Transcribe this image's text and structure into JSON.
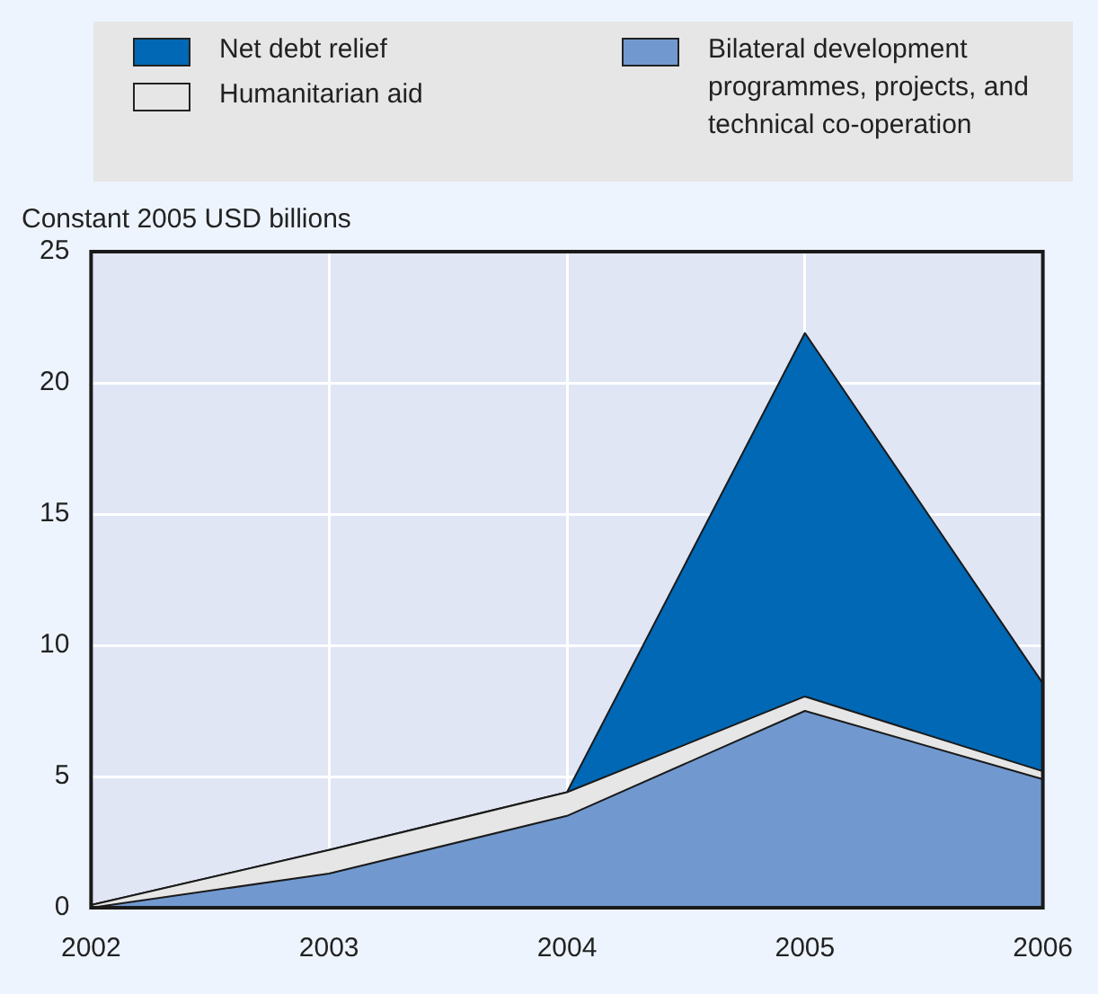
{
  "chart_data": {
    "type": "area",
    "stacked": true,
    "ylabel": "Constant 2005 USD billions",
    "categories": [
      "2002",
      "2003",
      "2004",
      "2005",
      "2006"
    ],
    "series": [
      {
        "name": "Bilateral development programmes, projects, and technical co-operation",
        "color": "#7199d0",
        "values": [
          0,
          1.3,
          3.5,
          7.5,
          4.9
        ]
      },
      {
        "name": "Humanitarian aid",
        "color": "#e6e6e6",
        "values": [
          0.1,
          0.9,
          0.9,
          0.55,
          0.3
        ]
      },
      {
        "name": "Net debt relief",
        "color": "#0068b5",
        "values": [
          0,
          0,
          0,
          13.85,
          3.35
        ]
      }
    ],
    "ylim": [
      0,
      25
    ],
    "yticks": [
      0,
      5,
      10,
      15,
      20,
      25
    ],
    "grid": true,
    "legend": "top"
  }
}
